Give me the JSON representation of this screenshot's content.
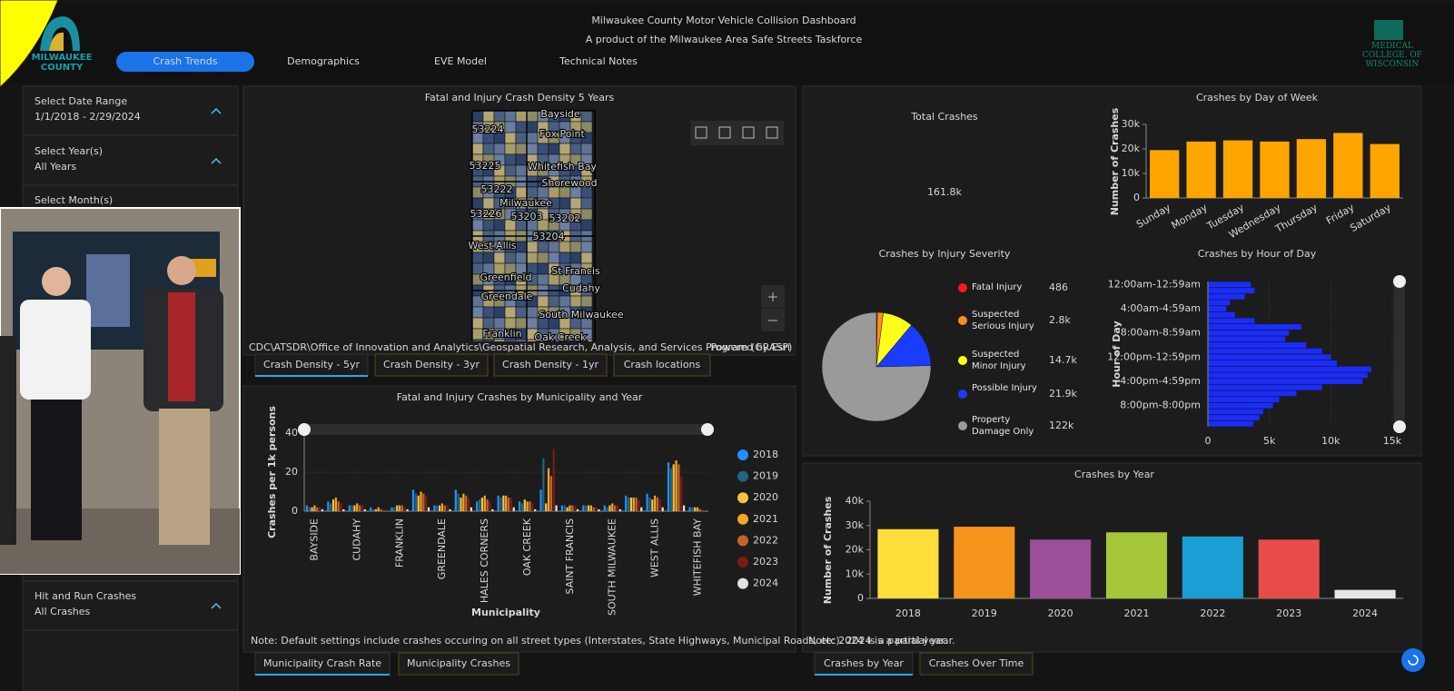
{
  "header": {
    "title": "Milwaukee County Motor Vehicle Collision Dashboard",
    "subtitle": "A product of the Milwaukee Area Safe Streets Taskforce",
    "logo_text": "MILWAUKEE COUNTY",
    "partner": "MEDICAL COLLEGE. OF WISCONSIN"
  },
  "nav": [
    "Crash Trends",
    "Demographics",
    "EVE Model",
    "Technical Notes"
  ],
  "sidebar": [
    {
      "label": "Select Date Range",
      "value": "1/1/2018 - 2/29/2024"
    },
    {
      "label": "Select Year(s)",
      "value": "All Years"
    },
    {
      "label": "Select Month(s)"
    },
    {
      "label": "Hit and Run Crashes",
      "value": "All Crashes"
    }
  ],
  "map": {
    "title": "Fatal and Injury Crash Density 5 Years",
    "labels": [
      "Bayside",
      "53224",
      "Fox Point",
      "53225",
      "Whitefish Bay",
      "Shorewood",
      "53222",
      "Milwaukee",
      "53226",
      "53203",
      "53202",
      "53204",
      "West Allis",
      "Greenfield",
      "St Francis",
      "Greendale",
      "Cudahy",
      "Franklin",
      "South Milwaukee",
      "Oak Creek"
    ],
    "attribution": "CDC\\ATSDR\\Office of Innovation and Analytics\\Geospatial Research, Analysis, and Services Program (GRASP)",
    "powered_by": "Powered by Esri",
    "tabs": [
      "Crash Density - 5yr",
      "Crash Density - 3yr",
      "Crash Density - 1yr",
      "Crash locations"
    ]
  },
  "total": {
    "title": "Total Crashes",
    "value": "161.8k"
  },
  "chart_tabs": {
    "municipality": [
      "Municipality Crash Rate",
      "Municipality Crashes"
    ],
    "year": [
      "Crashes by Year",
      "Crashes Over Time"
    ]
  },
  "chart_data": [
    {
      "type": "bar",
      "title": "Crashes by Day of Week",
      "y_label": "Number of Crashes",
      "categories": [
        "Sunday",
        "Monday",
        "Tuesday",
        "Wednesday",
        "Thursday",
        "Friday",
        "Saturday"
      ],
      "values": [
        19500,
        23000,
        23500,
        23000,
        24000,
        26500,
        22000
      ],
      "color": "#ffa500",
      "ylim": [
        0,
        30000
      ],
      "yticks": [
        0,
        {
          "value": 10000,
          "label": "10k"
        },
        {
          "value": 20000,
          "label": "20k"
        },
        {
          "value": 30000,
          "label": "30k"
        }
      ],
      "grid": false
    },
    {
      "type": "pie",
      "title": "Crashes by Injury Severity",
      "categories": [
        "Fatal Injury",
        "Suspected Serious Injury",
        "Suspected Minor Injury",
        "Possible Injury",
        "Property Damage Only"
      ],
      "values": [
        486,
        2800,
        14700,
        21900,
        122000
      ],
      "value_labels": [
        "486",
        "2.8k",
        "14.7k",
        "21.9k",
        "122k"
      ],
      "colors": [
        "#ff1a1a",
        "#ff8c1a",
        "#ffff1a",
        "#1a3cff",
        "#9a9a9a"
      ]
    },
    {
      "type": "bar",
      "orientation": "horizontal",
      "title": "Crashes by Hour of Day",
      "y_label": "Hour of Day",
      "categories": [
        "12:00am-12:59am",
        null,
        null,
        null,
        "4:00am-4:59am",
        null,
        null,
        null,
        "8:00am-8:59am",
        null,
        null,
        null,
        "12:00pm-12:59pm",
        null,
        null,
        null,
        "4:00pm-4:59pm",
        null,
        null,
        null,
        "8:00pm-8:00pm",
        null,
        null,
        null
      ],
      "values": [
        3500,
        3800,
        3000,
        1800,
        1500,
        2200,
        3800,
        7600,
        6600,
        6300,
        8000,
        9300,
        10000,
        10500,
        13300,
        13000,
        12600,
        9300,
        7200,
        5800,
        5300,
        4500,
        4200,
        3700
      ],
      "color": "#1a2cff",
      "xlim": [
        0,
        15000
      ],
      "xticks": [
        0,
        {
          "value": 5000,
          "label": "5k"
        },
        {
          "value": 10000,
          "label": "10k"
        },
        {
          "value": 15000,
          "label": "15k"
        }
      ],
      "grid": true
    },
    {
      "type": "bar",
      "title": "Crashes by Year",
      "y_label": "Number of Crashes",
      "categories": [
        "2018",
        "2019",
        "2020",
        "2021",
        "2022",
        "2023",
        "2024"
      ],
      "values": [
        28500,
        29500,
        24200,
        27200,
        25500,
        24200,
        3500
      ],
      "colors": [
        "#ffde3b",
        "#f7941d",
        "#9b4f9b",
        "#a6c63a",
        "#1a9ed4",
        "#e84b4b",
        "#e6e6e6"
      ],
      "ylim": [
        0,
        40000
      ],
      "yticks": [
        0,
        {
          "value": 10000,
          "label": "10k"
        },
        {
          "value": 20000,
          "label": "20k"
        },
        {
          "value": 30000,
          "label": "30k"
        },
        {
          "value": 40000,
          "label": "40k"
        }
      ],
      "grid": false,
      "note": "Note: 2024 is a partial year."
    },
    {
      "type": "bar",
      "title": "Fatal and Injury Crashes by Municipality and Year",
      "x_label": "Municipality",
      "y_label": "Crashes per 1k persons",
      "categories": [
        "BAYSIDE",
        null,
        "CUDAHY",
        null,
        "FRANKLIN",
        null,
        "GREENDALE",
        null,
        "HALES CORNERS",
        null,
        "OAK CREEK",
        null,
        "SAINT FRANCIS",
        null,
        "SOUTH MILWAUKEE",
        null,
        "WEST ALLIS",
        null,
        "WHITEFISH BAY"
      ],
      "series": [
        {
          "name": "2018",
          "color": "#1e90ff",
          "values": [
            3,
            5,
            3,
            2,
            2,
            11,
            3,
            11,
            5,
            8,
            5,
            11,
            3,
            3,
            3,
            8,
            9,
            25,
            2
          ]
        },
        {
          "name": "2019",
          "color": "#1f6680",
          "values": [
            2,
            4,
            3,
            1,
            2,
            9,
            3,
            9,
            6,
            7,
            4,
            27,
            3,
            3,
            2,
            7,
            7,
            22,
            2
          ]
        },
        {
          "name": "2020",
          "color": "#f5c242",
          "values": [
            2,
            6,
            3,
            1,
            3,
            8,
            3,
            7,
            7,
            8,
            6,
            4,
            2,
            3,
            3,
            7,
            6,
            24,
            2
          ]
        },
        {
          "name": "2021",
          "color": "#f5a623",
          "values": [
            3,
            7,
            4,
            2,
            3,
            10,
            4,
            9,
            8,
            8,
            5,
            22,
            3,
            3,
            4,
            7,
            8,
            26,
            2
          ]
        },
        {
          "name": "2022",
          "color": "#c0642a",
          "values": [
            2,
            5,
            3,
            1,
            3,
            9,
            3,
            8,
            6,
            7,
            5,
            18,
            3,
            2,
            3,
            7,
            7,
            24,
            1
          ]
        },
        {
          "name": "2023",
          "color": "#7a1a1a",
          "values": [
            2,
            4,
            3,
            1,
            2,
            8,
            3,
            7,
            5,
            7,
            4,
            32,
            3,
            2,
            3,
            6,
            6,
            18,
            1
          ]
        },
        {
          "name": "2024",
          "color": "#e0e0e0",
          "values": [
            1,
            1,
            1,
            0,
            1,
            2,
            1,
            2,
            1,
            2,
            1,
            3,
            1,
            1,
            1,
            2,
            2,
            3,
            0
          ]
        }
      ],
      "ylim": [
        0,
        40
      ],
      "yticks": [
        0,
        20,
        40
      ],
      "grid": true,
      "note": "Note: Default settings include crashes occuring on all street types (Interstates, State Highways, Municipal Roads, etc). 2024 is a partial year."
    }
  ]
}
